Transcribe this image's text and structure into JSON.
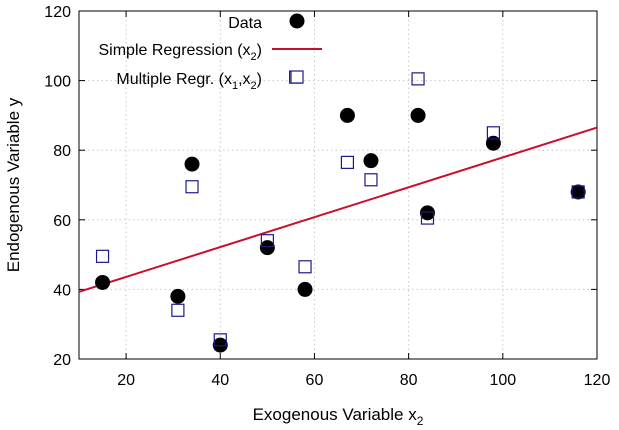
{
  "chart_data": {
    "type": "scatter",
    "xlabel": {
      "base": "Exogenous Variable x",
      "sub": "2"
    },
    "ylabel": "Endogenous Variable y",
    "xlim": [
      10,
      120
    ],
    "ylim": [
      20,
      120
    ],
    "xticks": [
      20,
      40,
      60,
      80,
      100,
      120
    ],
    "yticks": [
      20,
      40,
      60,
      80,
      100,
      120
    ],
    "grid": true,
    "legend_position": "top-center",
    "series": [
      {
        "name": "Data",
        "marker": "filled-circle",
        "color": "#000000",
        "x": [
          15,
          31,
          34,
          40,
          50,
          58,
          67,
          72,
          82,
          84,
          98,
          116
        ],
        "y": [
          42,
          38,
          76,
          24,
          52,
          40,
          90,
          77,
          90,
          62,
          82,
          68
        ]
      },
      {
        "name": "Simple Regression (x2)",
        "legend_base": "Simple Regression (x",
        "legend_sub": "2",
        "legend_tail": ")",
        "marker": "line",
        "color": "#c8102e",
        "line": {
          "x": [
            10,
            120
          ],
          "y": [
            39.3,
            86.5
          ]
        }
      },
      {
        "name": "Multiple Regr. (x1,x2)",
        "legend_base": "Multiple Regr. (x",
        "legend_sub1": "1",
        "legend_mid": ",x",
        "legend_sub2": "2",
        "legend_tail": ")",
        "marker": "open-square",
        "color": "#1a1a8c",
        "x": [
          15,
          31,
          34,
          40,
          50,
          56,
          58,
          67,
          72,
          82,
          84,
          98,
          116
        ],
        "y": [
          49.5,
          34,
          69.5,
          25.5,
          54,
          101,
          46.5,
          76.5,
          71.5,
          100.5,
          60.5,
          85,
          68
        ]
      }
    ]
  }
}
